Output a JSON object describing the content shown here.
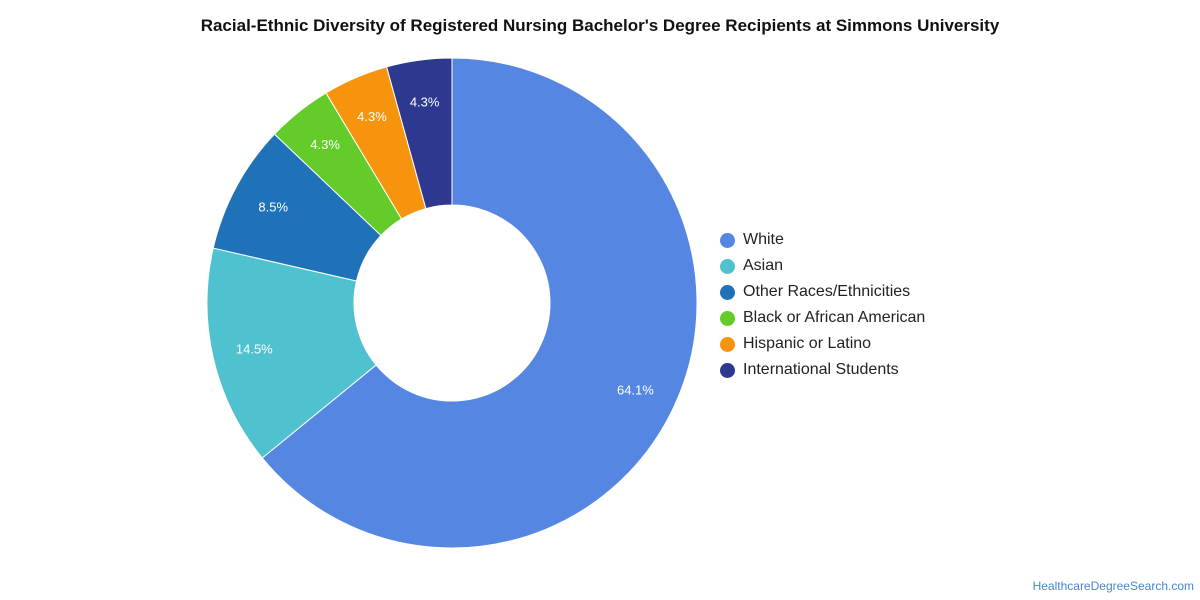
{
  "chart_data": {
    "type": "pie",
    "title": "Racial-Ethnic Diversity of Registered Nursing Bachelor's Degree Recipients at Simmons University",
    "donut": true,
    "legend_position": "right",
    "categories": [
      "White",
      "Asian",
      "Other Races/Ethnicities",
      "Black or African American",
      "Hispanic or Latino",
      "International Students"
    ],
    "values": [
      64.1,
      14.5,
      8.5,
      4.3,
      4.3,
      4.3
    ],
    "labels": [
      "64.1%",
      "14.5%",
      "8.5%",
      "4.3%",
      "4.3%",
      "4.3%"
    ],
    "colors": [
      "#5486e2",
      "#50c1cf",
      "#1f71b8",
      "#63cc2a",
      "#f7940e",
      "#2d3990"
    ]
  },
  "source": "HealthcareDegreeSearch.com"
}
